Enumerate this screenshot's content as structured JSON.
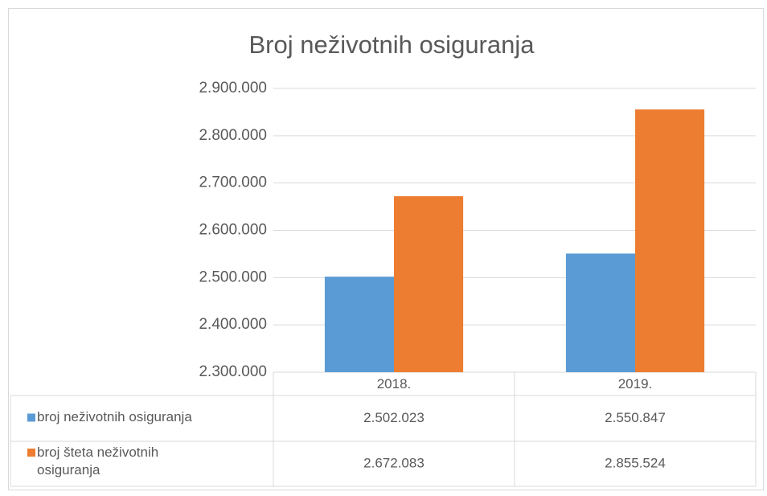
{
  "chart_data": {
    "type": "bar",
    "title": "Broj neživotnih osiguranja",
    "categories": [
      "2018.",
      "2019."
    ],
    "series": [
      {
        "name": "broj neživotnih osiguranja",
        "color": "#5b9bd5",
        "values": [
          2502023,
          2550847
        ],
        "value_labels": [
          "2.502.023",
          "2.550.847"
        ]
      },
      {
        "name": "broj šteta neživotnih osiguranja",
        "color": "#ed7d31",
        "values": [
          2672083,
          2855524
        ],
        "value_labels": [
          "2.672.083",
          "2.855.524"
        ]
      }
    ],
    "ylim": [
      2300000,
      2900000
    ],
    "yticks": [
      {
        "value": 2300000,
        "label": "2.300.000"
      },
      {
        "value": 2400000,
        "label": "2.400.000"
      },
      {
        "value": 2500000,
        "label": "2.500.000"
      },
      {
        "value": 2600000,
        "label": "2.600.000"
      },
      {
        "value": 2700000,
        "label": "2.700.000"
      },
      {
        "value": 2800000,
        "label": "2.800.000"
      },
      {
        "value": 2900000,
        "label": "2.900.000"
      }
    ],
    "grid": true
  }
}
